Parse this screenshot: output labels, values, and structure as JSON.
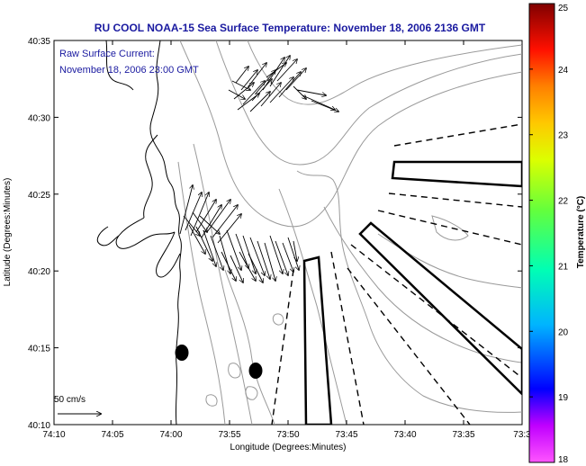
{
  "header": {
    "title": "RU COOL  NOAA-15  Sea Surface Temperature:  November 18, 2006 2136 GMT"
  },
  "annotation": {
    "line1": "Raw Surface Current:",
    "line2": "November 18, 2006 23:00 GMT"
  },
  "axes": {
    "xlabel": "Longitude (Degrees:Minutes)",
    "ylabel": "Latitude (Degrees:Minutes)",
    "xticks": [
      "74:10",
      "74:05",
      "74:00",
      "73:55",
      "73:50",
      "73:45",
      "73:40",
      "73:35",
      "73:3"
    ],
    "yticks": [
      "40:10",
      "40:15",
      "40:20",
      "40:25",
      "40:30",
      "40:35"
    ]
  },
  "scale": {
    "label": "50 cm/s"
  },
  "colorbar": {
    "label": "Temperature (°C)",
    "ticks": [
      "18",
      "19",
      "20",
      "21",
      "22",
      "23",
      "24",
      "25"
    ],
    "colors": [
      "#ff55ff",
      "#6a00ff",
      "#0000ff",
      "#00c8ff",
      "#00ffb0",
      "#50ff50",
      "#c8ff00",
      "#ffd700",
      "#ff8000",
      "#ff0000",
      "#c00000",
      "#800000"
    ]
  }
}
